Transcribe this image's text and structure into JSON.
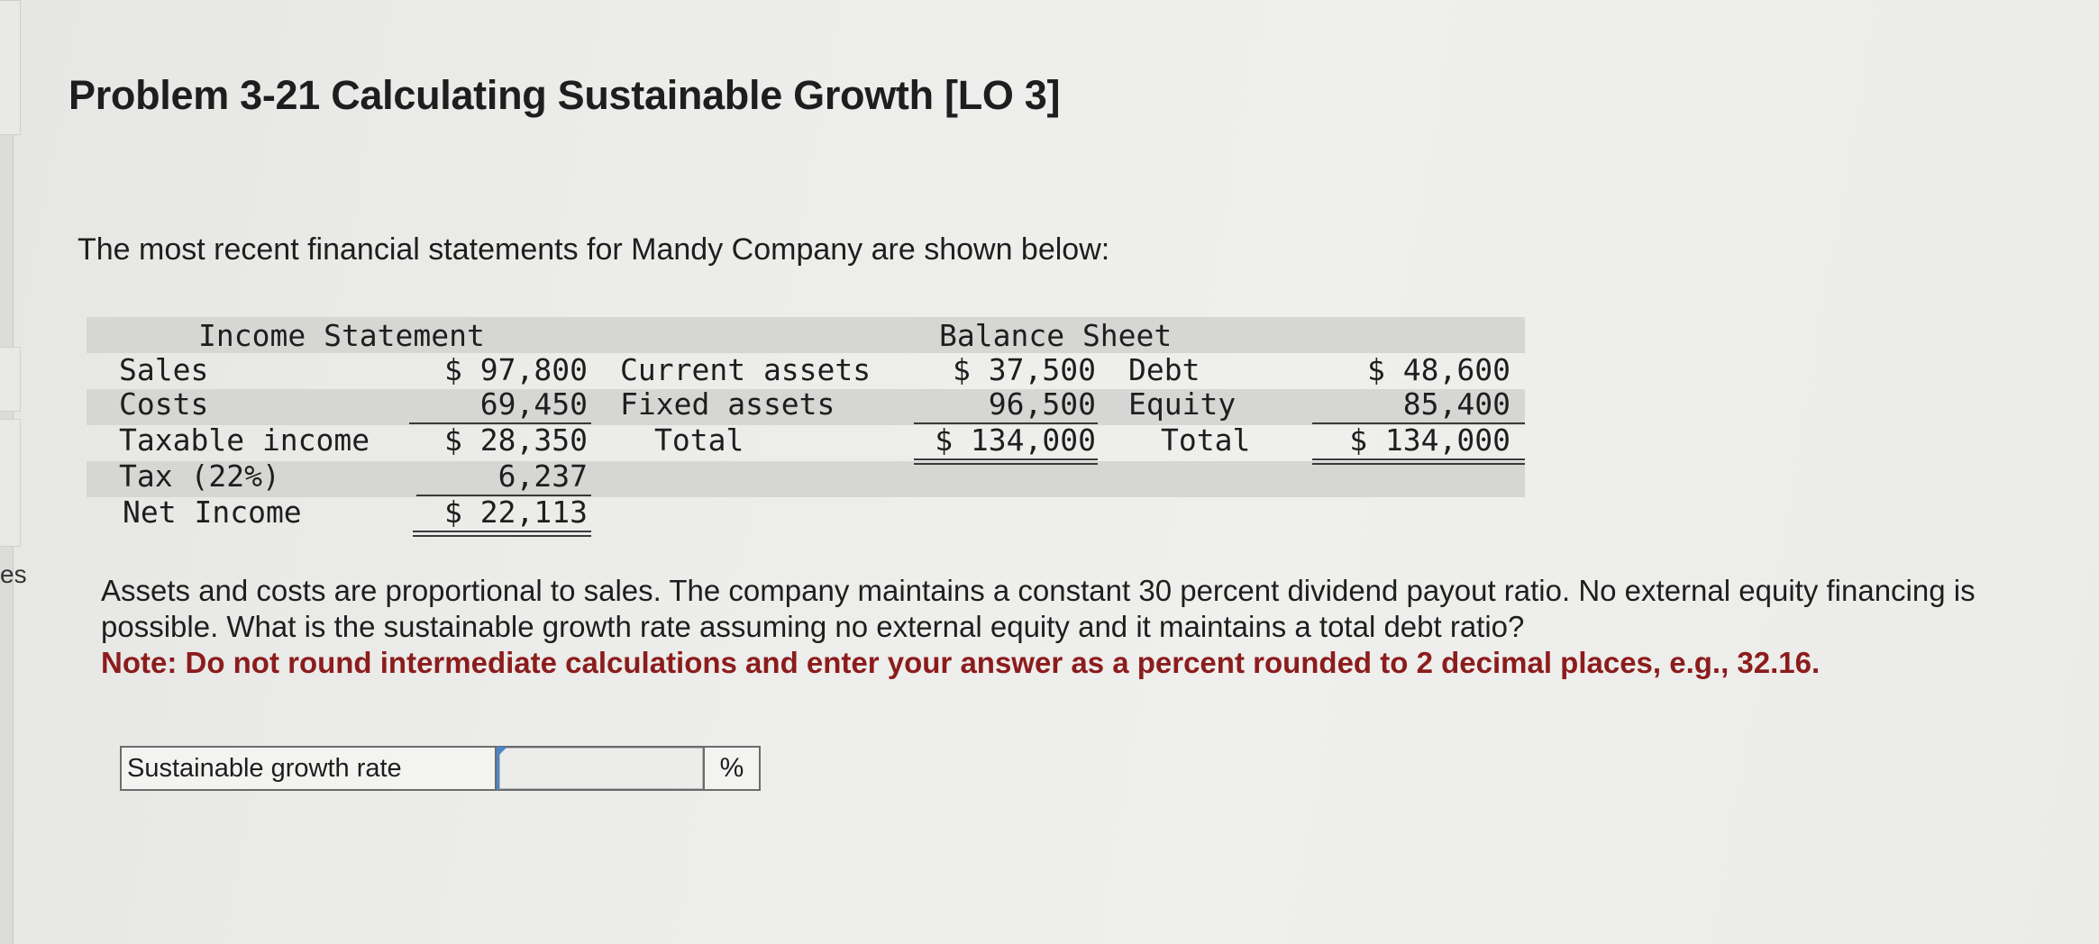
{
  "edge": {
    "label": "es"
  },
  "problem": {
    "title": "Problem 3-21 Calculating Sustainable Growth [LO 3]",
    "intro": "The most recent financial statements for Mandy Company are shown below:"
  },
  "income_statement": {
    "header": "Income Statement",
    "rows": [
      {
        "label": "Sales",
        "value": "$ 97,800"
      },
      {
        "label": "Costs",
        "value": "69,450"
      },
      {
        "label": "Taxable income",
        "value": "$ 28,350"
      },
      {
        "label": "Tax (22%)",
        "value": "6,237"
      },
      {
        "label": "Net Income",
        "value": "$ 22,113"
      }
    ]
  },
  "balance_sheet": {
    "header": "Balance Sheet",
    "assets": [
      {
        "label": "Current assets",
        "value": "$ 37,500"
      },
      {
        "label": "Fixed assets",
        "value": "96,500"
      },
      {
        "label": "Total",
        "value": "$ 134,000"
      }
    ],
    "liabilities": [
      {
        "label": "Debt",
        "value": "$ 48,600"
      },
      {
        "label": "Equity",
        "value": "85,400"
      },
      {
        "label": "Total",
        "value": "$ 134,000"
      }
    ]
  },
  "question": {
    "text": "Assets and costs are proportional to sales. The company maintains a constant 30 percent dividend payout ratio. No external equity financing is possible. What is the sustainable growth rate assuming no external equity and it maintains a total debt ratio?",
    "note": "Note: Do not round intermediate calculations and enter your answer as a percent rounded to 2 decimal places, e.g., 32.16."
  },
  "answer": {
    "label": "Sustainable growth rate",
    "value": "",
    "unit": "%"
  }
}
